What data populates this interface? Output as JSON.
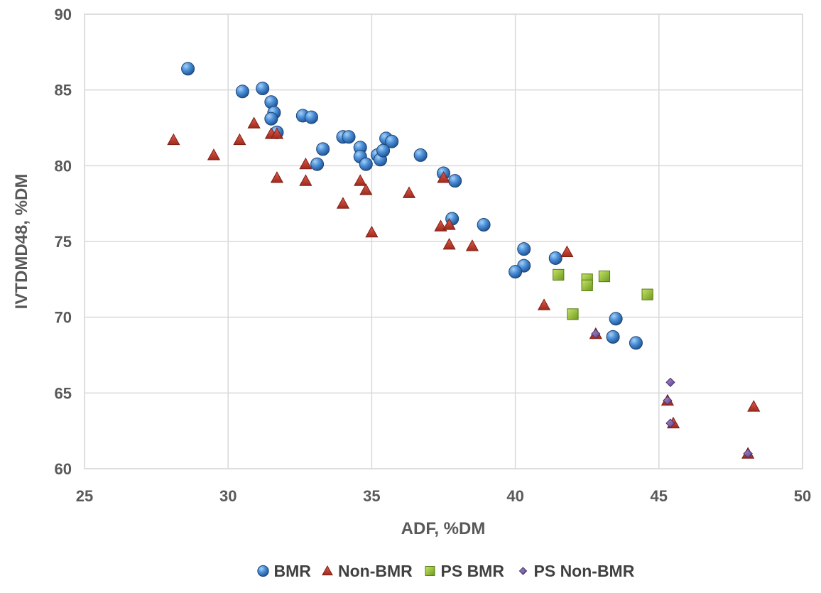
{
  "chart_data": {
    "type": "scatter",
    "title": "",
    "xlabel": "ADF, %DM",
    "ylabel": "IVTDMD48, %DM",
    "xlim": [
      25,
      50
    ],
    "ylim": [
      60,
      90
    ],
    "x_ticks": [
      25,
      30,
      35,
      40,
      45,
      50
    ],
    "y_ticks": [
      60,
      65,
      70,
      75,
      80,
      85,
      90
    ],
    "grid": true,
    "legend_position": "bottom",
    "series": [
      {
        "name": "BMR",
        "marker": "circle",
        "color": "#2e75b6",
        "points": [
          [
            28.6,
            86.4
          ],
          [
            30.5,
            84.9
          ],
          [
            31.2,
            85.1
          ],
          [
            31.5,
            84.2
          ],
          [
            31.6,
            83.5
          ],
          [
            31.5,
            83.1
          ],
          [
            31.7,
            82.2
          ],
          [
            32.6,
            83.3
          ],
          [
            32.9,
            83.2
          ],
          [
            34.0,
            81.9
          ],
          [
            34.2,
            81.9
          ],
          [
            33.3,
            81.1
          ],
          [
            33.1,
            80.1
          ],
          [
            34.6,
            81.2
          ],
          [
            34.6,
            80.6
          ],
          [
            34.8,
            80.1
          ],
          [
            35.2,
            80.7
          ],
          [
            35.3,
            80.4
          ],
          [
            35.4,
            81.0
          ],
          [
            35.5,
            81.8
          ],
          [
            35.7,
            81.6
          ],
          [
            36.7,
            80.7
          ],
          [
            37.5,
            79.5
          ],
          [
            37.9,
            79.0
          ],
          [
            37.8,
            76.5
          ],
          [
            38.9,
            76.1
          ],
          [
            40.3,
            74.5
          ],
          [
            40.3,
            73.4
          ],
          [
            40.0,
            73.0
          ],
          [
            41.4,
            73.9
          ],
          [
            43.5,
            69.9
          ],
          [
            43.4,
            68.7
          ],
          [
            44.2,
            68.3
          ]
        ]
      },
      {
        "name": "Non-BMR",
        "marker": "triangle",
        "color": "#c0392b",
        "points": [
          [
            28.1,
            81.7
          ],
          [
            29.5,
            80.7
          ],
          [
            30.4,
            81.7
          ],
          [
            30.9,
            82.8
          ],
          [
            31.5,
            82.1
          ],
          [
            31.7,
            82.1
          ],
          [
            31.7,
            79.2
          ],
          [
            32.7,
            80.1
          ],
          [
            32.7,
            79.0
          ],
          [
            34.0,
            77.5
          ],
          [
            34.6,
            79.0
          ],
          [
            34.8,
            78.4
          ],
          [
            35.0,
            75.6
          ],
          [
            36.3,
            78.2
          ],
          [
            37.5,
            79.2
          ],
          [
            37.4,
            76.0
          ],
          [
            37.7,
            76.1
          ],
          [
            37.7,
            74.8
          ],
          [
            38.5,
            74.7
          ],
          [
            41.8,
            74.3
          ],
          [
            41.0,
            70.8
          ],
          [
            42.8,
            68.9
          ],
          [
            45.3,
            64.5
          ],
          [
            45.5,
            63.0
          ],
          [
            48.3,
            64.1
          ],
          [
            48.1,
            61.0
          ]
        ]
      },
      {
        "name": "PS BMR",
        "marker": "square",
        "color": "#8cbd2a",
        "points": [
          [
            41.5,
            72.8
          ],
          [
            42.5,
            72.5
          ],
          [
            42.5,
            72.1
          ],
          [
            43.1,
            72.7
          ],
          [
            42.0,
            70.2
          ],
          [
            44.6,
            71.5
          ]
        ]
      },
      {
        "name": "PS Non-BMR",
        "marker": "diamond",
        "color": "#7a5ba6",
        "points": [
          [
            42.8,
            68.9
          ],
          [
            45.3,
            64.5
          ],
          [
            45.4,
            65.7
          ],
          [
            45.4,
            63.0
          ],
          [
            48.1,
            61.0
          ]
        ]
      }
    ]
  }
}
